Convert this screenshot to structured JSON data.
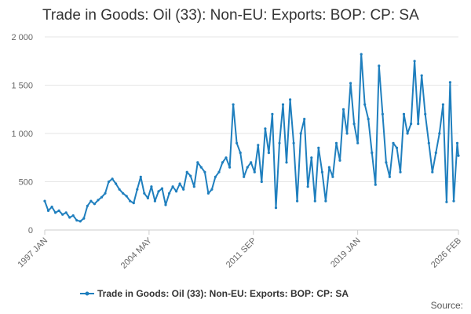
{
  "chart_data": {
    "type": "line",
    "title": "Trade in Goods: Oil (33): Non-EU: Exports: BOP: CP: SA",
    "xlabel": "",
    "ylabel": "",
    "ylim": [
      0,
      2000
    ],
    "yticks": [
      0,
      500,
      1000,
      1500,
      2000
    ],
    "ytick_labels": [
      "0",
      "500",
      "1 000",
      "1 500",
      "2 000"
    ],
    "xlim": [
      1997.0,
      2026.083
    ],
    "xticks": [
      {
        "label": "1997 JAN",
        "x": 1997.0
      },
      {
        "label": "2004 MAY",
        "x": 2004.333
      },
      {
        "label": "2011 SEP",
        "x": 2011.667
      },
      {
        "label": "2019 JAN",
        "x": 2019.0
      },
      {
        "label": "2026 FEB",
        "x": 2026.083
      }
    ],
    "grid": "horizontal",
    "legend": "bottom-center",
    "series": [
      {
        "name": "Trade in Goods: Oil (33): Non-EU: Exports: BOP: CP: SA",
        "color": "#1f7fbe",
        "points": [
          [
            1997.0,
            300
          ],
          [
            1997.25,
            200
          ],
          [
            1997.5,
            240
          ],
          [
            1997.75,
            180
          ],
          [
            1998.0,
            200
          ],
          [
            1998.25,
            160
          ],
          [
            1998.5,
            180
          ],
          [
            1998.75,
            130
          ],
          [
            1999.0,
            150
          ],
          [
            1999.25,
            100
          ],
          [
            1999.5,
            90
          ],
          [
            1999.75,
            120
          ],
          [
            2000.0,
            250
          ],
          [
            2000.25,
            300
          ],
          [
            2000.5,
            270
          ],
          [
            2000.75,
            310
          ],
          [
            2001.0,
            340
          ],
          [
            2001.25,
            380
          ],
          [
            2001.5,
            500
          ],
          [
            2001.75,
            530
          ],
          [
            2002.0,
            480
          ],
          [
            2002.25,
            420
          ],
          [
            2002.5,
            380
          ],
          [
            2002.75,
            350
          ],
          [
            2003.0,
            300
          ],
          [
            2003.25,
            280
          ],
          [
            2003.5,
            420
          ],
          [
            2003.75,
            550
          ],
          [
            2004.0,
            380
          ],
          [
            2004.25,
            330
          ],
          [
            2004.5,
            450
          ],
          [
            2004.75,
            300
          ],
          [
            2005.0,
            400
          ],
          [
            2005.25,
            430
          ],
          [
            2005.5,
            260
          ],
          [
            2005.75,
            380
          ],
          [
            2006.0,
            450
          ],
          [
            2006.25,
            400
          ],
          [
            2006.5,
            480
          ],
          [
            2006.75,
            420
          ],
          [
            2007.0,
            600
          ],
          [
            2007.25,
            560
          ],
          [
            2007.5,
            450
          ],
          [
            2007.75,
            700
          ],
          [
            2008.0,
            650
          ],
          [
            2008.25,
            600
          ],
          [
            2008.5,
            380
          ],
          [
            2008.75,
            420
          ],
          [
            2009.0,
            550
          ],
          [
            2009.25,
            600
          ],
          [
            2009.5,
            700
          ],
          [
            2009.75,
            750
          ],
          [
            2010.0,
            650
          ],
          [
            2010.25,
            1300
          ],
          [
            2010.5,
            900
          ],
          [
            2010.75,
            800
          ],
          [
            2011.0,
            550
          ],
          [
            2011.25,
            650
          ],
          [
            2011.5,
            700
          ],
          [
            2011.75,
            600
          ],
          [
            2012.0,
            880
          ],
          [
            2012.25,
            500
          ],
          [
            2012.5,
            1050
          ],
          [
            2012.75,
            800
          ],
          [
            2013.0,
            1200
          ],
          [
            2013.25,
            230
          ],
          [
            2013.5,
            900
          ],
          [
            2013.75,
            1300
          ],
          [
            2014.0,
            700
          ],
          [
            2014.25,
            1350
          ],
          [
            2014.5,
            900
          ],
          [
            2014.75,
            300
          ],
          [
            2015.0,
            1000
          ],
          [
            2015.25,
            1150
          ],
          [
            2015.5,
            450
          ],
          [
            2015.75,
            750
          ],
          [
            2016.0,
            300
          ],
          [
            2016.25,
            850
          ],
          [
            2016.5,
            600
          ],
          [
            2016.75,
            300
          ],
          [
            2017.0,
            650
          ],
          [
            2017.25,
            550
          ],
          [
            2017.5,
            900
          ],
          [
            2017.75,
            720
          ],
          [
            2018.0,
            1250
          ],
          [
            2018.25,
            1000
          ],
          [
            2018.5,
            1520
          ],
          [
            2018.75,
            1100
          ],
          [
            2019.0,
            900
          ],
          [
            2019.25,
            1820
          ],
          [
            2019.5,
            1300
          ],
          [
            2019.75,
            1150
          ],
          [
            2020.0,
            800
          ],
          [
            2020.25,
            470
          ],
          [
            2020.5,
            1700
          ],
          [
            2020.75,
            1200
          ],
          [
            2021.0,
            700
          ],
          [
            2021.25,
            550
          ],
          [
            2021.5,
            900
          ],
          [
            2021.75,
            850
          ],
          [
            2022.0,
            600
          ],
          [
            2022.25,
            1200
          ],
          [
            2022.5,
            1000
          ],
          [
            2022.75,
            1100
          ],
          [
            2023.0,
            1750
          ],
          [
            2023.25,
            1100
          ],
          [
            2023.5,
            1600
          ],
          [
            2023.75,
            1200
          ],
          [
            2024.0,
            900
          ],
          [
            2024.25,
            600
          ],
          [
            2024.5,
            800
          ],
          [
            2024.75,
            1000
          ],
          [
            2025.0,
            1300
          ],
          [
            2025.25,
            290
          ],
          [
            2025.5,
            1530
          ],
          [
            2025.75,
            300
          ],
          [
            2026.0,
            900
          ],
          [
            2026.083,
            770
          ]
        ]
      }
    ]
  },
  "legend": {
    "label": "Trade in Goods: Oil (33): Non-EU: Exports: BOP: CP: SA"
  },
  "source": {
    "label": "Source:"
  }
}
